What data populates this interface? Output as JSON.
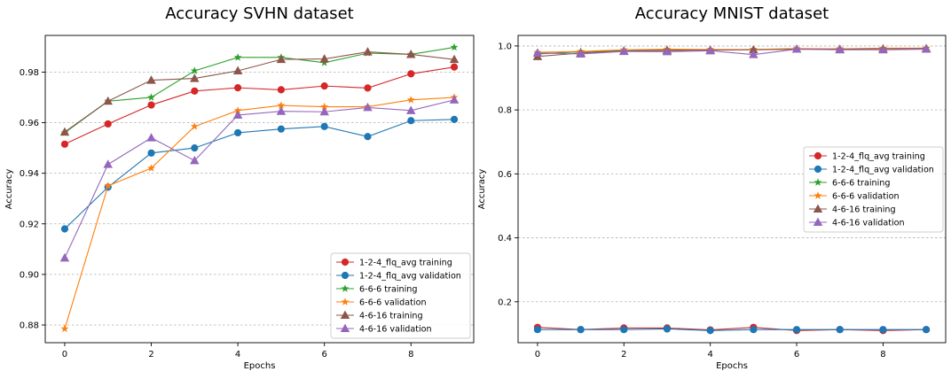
{
  "chart_data": [
    {
      "type": "line",
      "title": "Accuracy SVHN dataset",
      "xlabel": "Epochs",
      "ylabel": "Accuracy",
      "xlim": [
        -0.45,
        9.45
      ],
      "ylim": [
        0.873,
        0.9945
      ],
      "x_ticks": [
        0,
        2,
        4,
        6,
        8
      ],
      "y_ticks": [
        0.88,
        0.9,
        0.92,
        0.94,
        0.96,
        0.98
      ],
      "y_tick_labels": [
        "0.88",
        "0.90",
        "0.92",
        "0.94",
        "0.96",
        "0.98"
      ],
      "grid": "horizontal dashed",
      "legend_position": "lower-right",
      "x": [
        0,
        1,
        2,
        3,
        4,
        5,
        6,
        7,
        8,
        9
      ],
      "series": [
        {
          "name": "1-2-4_flq_avg training",
          "color": "#d62728",
          "marker": "circle",
          "values": [
            0.9515,
            0.9595,
            0.967,
            0.9725,
            0.9738,
            0.973,
            0.9745,
            0.9737,
            0.9793,
            0.982
          ]
        },
        {
          "name": "1-2-4_flq_avg validation",
          "color": "#1f77b4",
          "marker": "circle",
          "values": [
            0.918,
            0.9345,
            0.948,
            0.95,
            0.956,
            0.9575,
            0.9585,
            0.9545,
            0.9608,
            0.9613
          ]
        },
        {
          "name": "6-6-6 training",
          "color": "#2ca02c",
          "marker": "star",
          "values": [
            0.956,
            0.9685,
            0.97,
            0.9805,
            0.9858,
            0.9858,
            0.9837,
            0.9875,
            0.987,
            0.9898
          ]
        },
        {
          "name": "6-6-6 validation",
          "color": "#ff7f0e",
          "marker": "star",
          "values": [
            0.8785,
            0.935,
            0.942,
            0.9585,
            0.9648,
            0.9668,
            0.9663,
            0.9663,
            0.969,
            0.97
          ]
        },
        {
          "name": "4-6-16 training",
          "color": "#8c564b",
          "marker": "triangle",
          "values": [
            0.9563,
            0.9685,
            0.9768,
            0.9775,
            0.9805,
            0.985,
            0.9852,
            0.988,
            0.987,
            0.985
          ]
        },
        {
          "name": "4-6-16 validation",
          "color": "#9467bd",
          "marker": "triangle",
          "values": [
            0.9065,
            0.9435,
            0.954,
            0.945,
            0.963,
            0.9645,
            0.9643,
            0.966,
            0.9648,
            0.969
          ]
        }
      ]
    },
    {
      "type": "line",
      "title": "Accuracy MNIST dataset",
      "xlabel": "Epochs",
      "ylabel": "Accuracy",
      "xlim": [
        -0.45,
        9.45
      ],
      "ylim": [
        0.072,
        1.033
      ],
      "x_ticks": [
        0,
        2,
        4,
        6,
        8
      ],
      "y_ticks": [
        0.2,
        0.4,
        0.6,
        0.8,
        1.0
      ],
      "y_tick_labels": [
        "0.2",
        "0.4",
        "0.6",
        "0.8",
        "1.0"
      ],
      "grid": "horizontal dashed",
      "legend_position": "center-right",
      "x": [
        0,
        1,
        2,
        3,
        4,
        5,
        6,
        7,
        8,
        9
      ],
      "series": [
        {
          "name": "1-2-4_flq_avg training",
          "color": "#d62728",
          "marker": "circle",
          "values": [
            0.12,
            0.113,
            0.118,
            0.118,
            0.112,
            0.12,
            0.11,
            0.113,
            0.11,
            0.113
          ]
        },
        {
          "name": "1-2-4_flq_avg validation",
          "color": "#1f77b4",
          "marker": "circle",
          "values": [
            0.113,
            0.113,
            0.113,
            0.115,
            0.11,
            0.113,
            0.113,
            0.113,
            0.113,
            0.113
          ]
        },
        {
          "name": "6-6-6 training",
          "color": "#2ca02c",
          "marker": "star",
          "values": [
            0.975,
            0.982,
            0.985,
            0.988,
            0.988,
            0.989,
            0.99,
            0.991,
            0.992,
            0.993
          ]
        },
        {
          "name": "6-6-6 validation",
          "color": "#ff7f0e",
          "marker": "star",
          "values": [
            0.98,
            0.983,
            0.988,
            0.99,
            0.989,
            0.989,
            0.992,
            0.991,
            0.993,
            0.993
          ]
        },
        {
          "name": "4-6-16 training",
          "color": "#8c564b",
          "marker": "triangle",
          "values": [
            0.967,
            0.978,
            0.984,
            0.986,
            0.987,
            0.988,
            0.99,
            0.99,
            0.991,
            0.992
          ]
        },
        {
          "name": "4-6-16 validation",
          "color": "#9467bd",
          "marker": "triangle",
          "values": [
            0.978,
            0.975,
            0.983,
            0.982,
            0.985,
            0.973,
            0.99,
            0.988,
            0.988,
            0.99
          ]
        }
      ]
    }
  ]
}
